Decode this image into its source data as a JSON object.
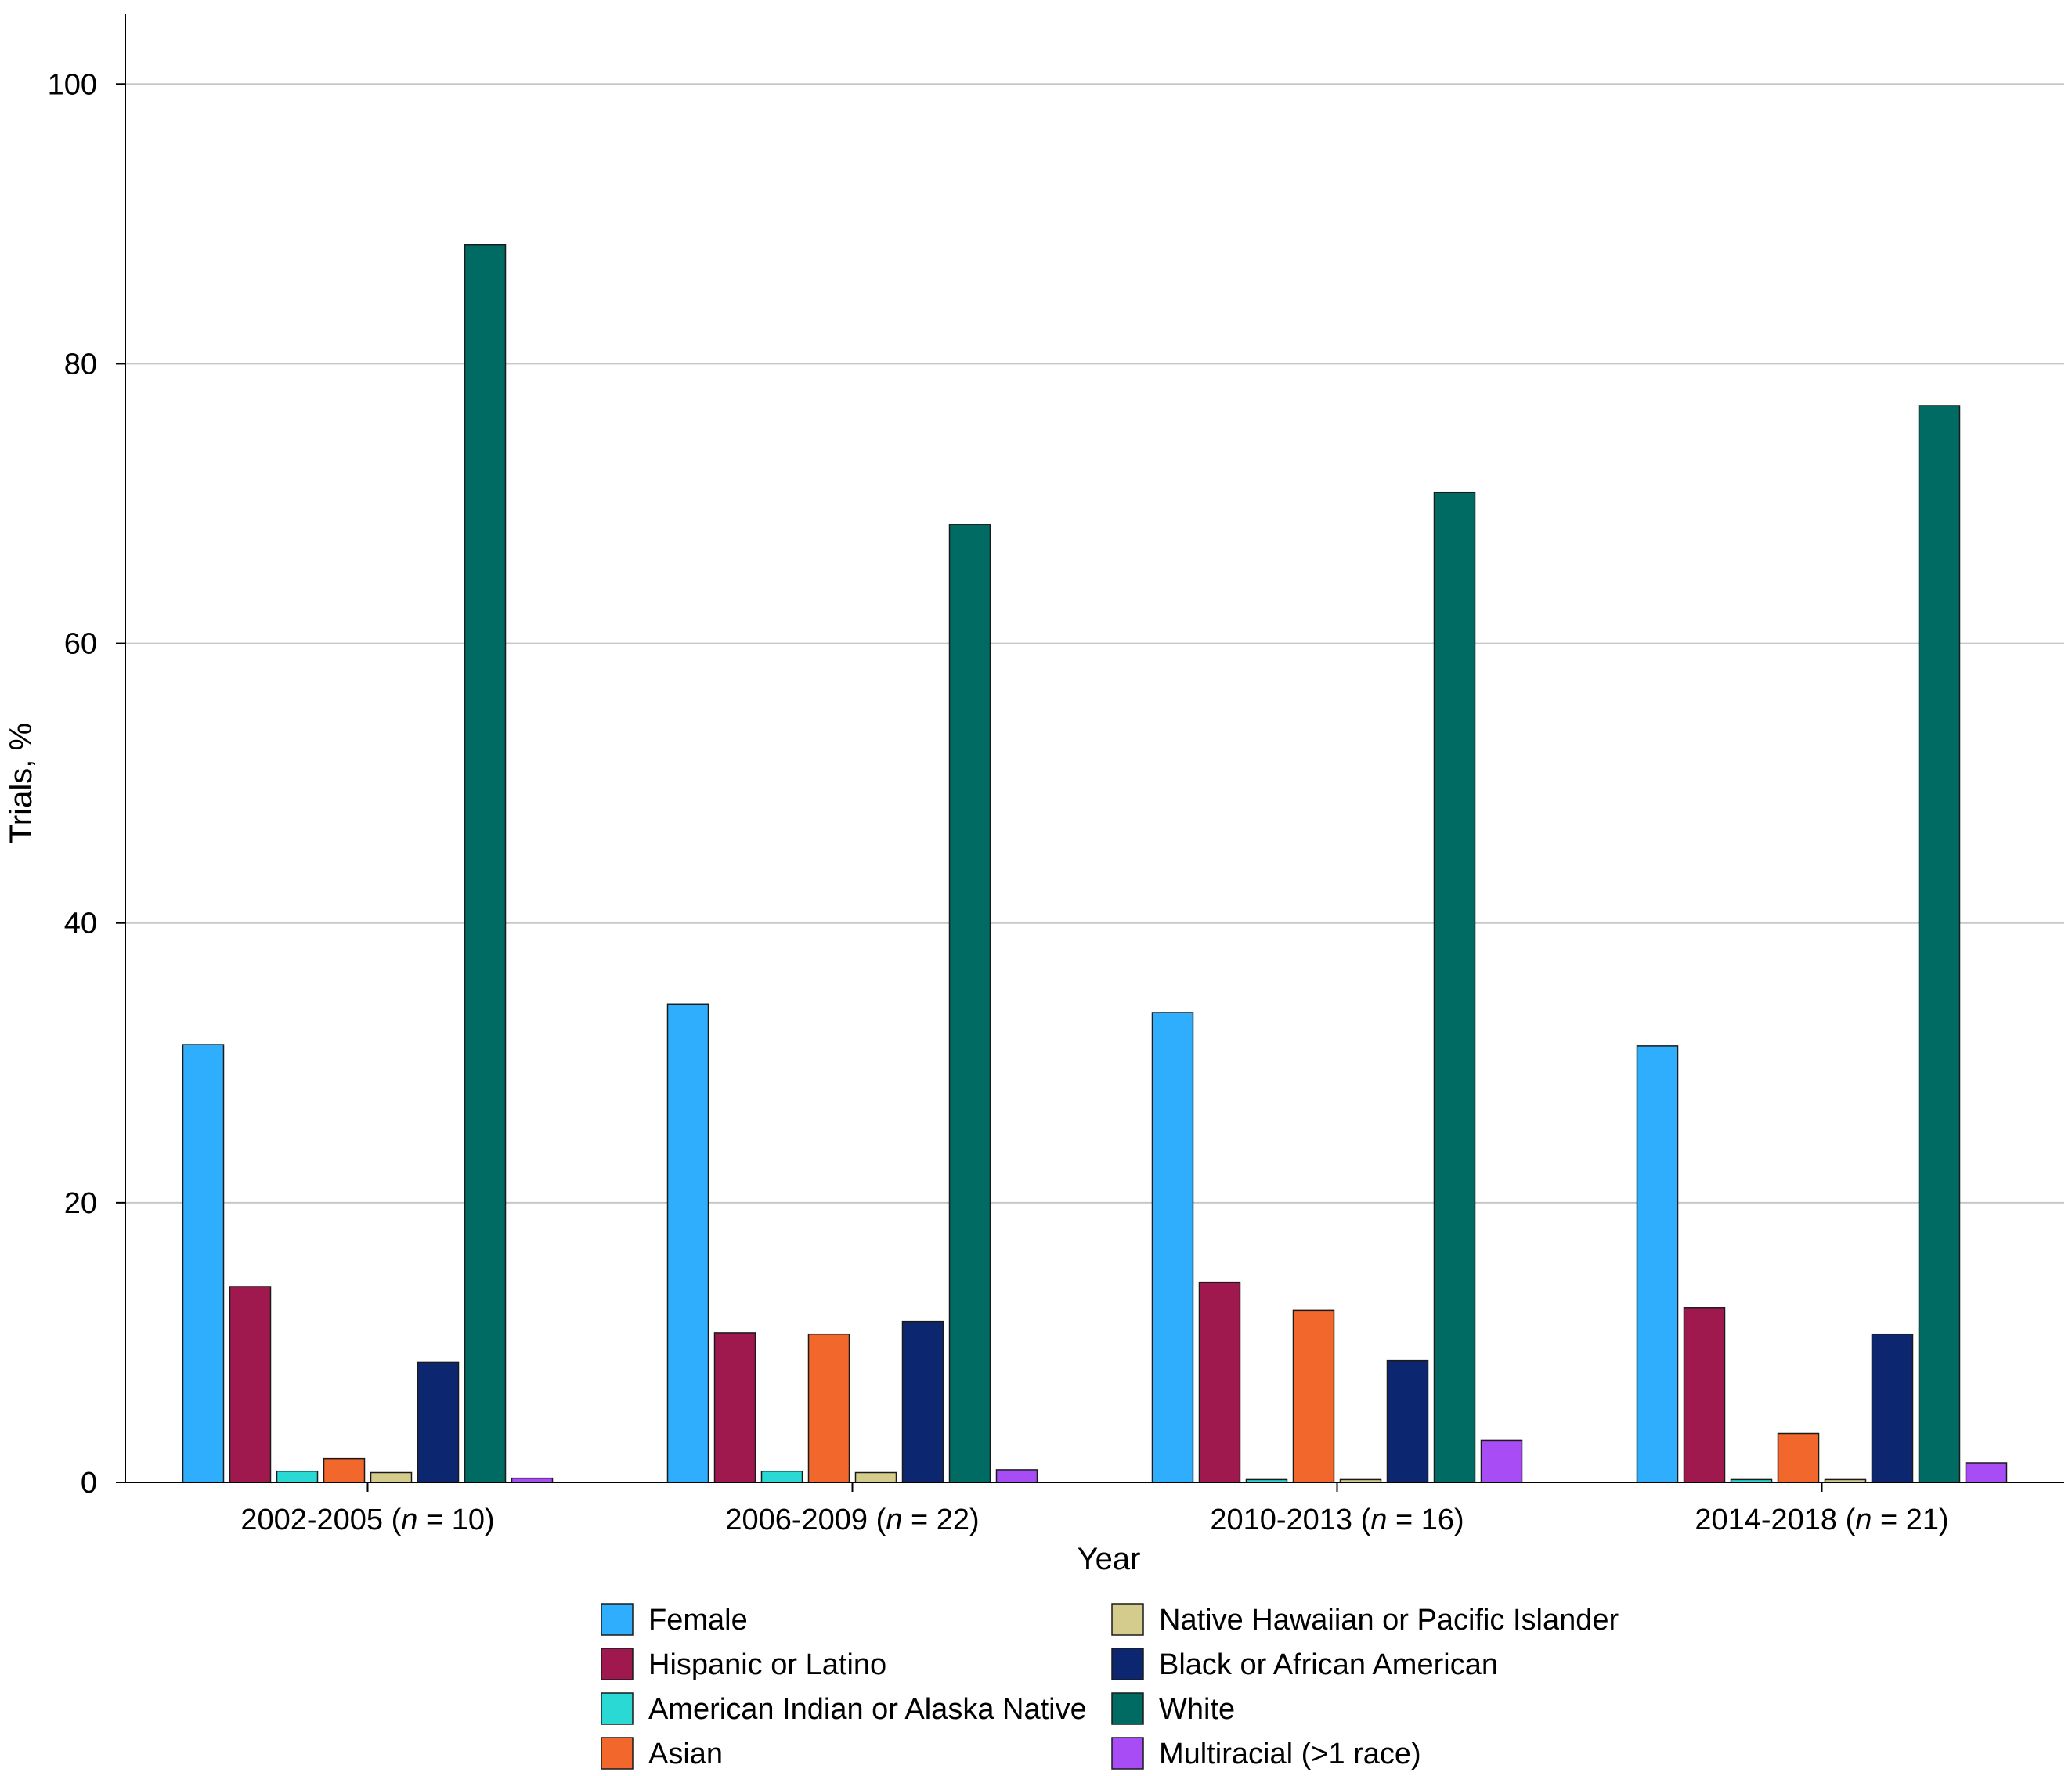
{
  "chart_data": {
    "type": "bar",
    "xlabel": "Year",
    "ylabel": "Trials, %",
    "ylim": [
      0,
      105
    ],
    "yticks": [
      0,
      20,
      40,
      60,
      80,
      100
    ],
    "grid": "horizontal",
    "legend_position": "bottom",
    "categories": [
      {
        "label": "2002-2005 (",
        "n_symbol": "n",
        "n_text": " = 10)"
      },
      {
        "label": "2006-2009 (",
        "n_symbol": "n",
        "n_text": " = 22)"
      },
      {
        "label": "2010-2013 (",
        "n_symbol": "n",
        "n_text": " = 16)"
      },
      {
        "label": "2014-2018 (",
        "n_symbol": "n",
        "n_text": " = 21)"
      }
    ],
    "series": [
      {
        "name": "Female",
        "color": "#2eaefc",
        "values": [
          31.3,
          34.2,
          33.6,
          31.2
        ]
      },
      {
        "name": "Hispanic or Latino",
        "color": "#a0194e",
        "values": [
          14.0,
          10.7,
          14.3,
          12.5
        ]
      },
      {
        "name": "American Indian or Alaska Native",
        "color": "#2ad9d4",
        "values": [
          0.8,
          0.8,
          0.2,
          0.2
        ]
      },
      {
        "name": "Asian",
        "color": "#f2672c",
        "values": [
          1.7,
          10.6,
          12.3,
          3.5
        ]
      },
      {
        "name": "Native Hawaiian or Pacific Islander",
        "color": "#d4cc8c",
        "values": [
          0.7,
          0.7,
          0.2,
          0.2
        ]
      },
      {
        "name": "Black or African American",
        "color": "#0d2670",
        "values": [
          8.6,
          11.5,
          8.7,
          10.6
        ]
      },
      {
        "name": "White",
        "color": "#006b63",
        "values": [
          88.5,
          68.5,
          70.8,
          77.0
        ]
      },
      {
        "name": "Multiracial (>1 race)",
        "color": "#a84df5",
        "values": [
          0.3,
          0.9,
          3.0,
          1.4
        ]
      }
    ]
  }
}
